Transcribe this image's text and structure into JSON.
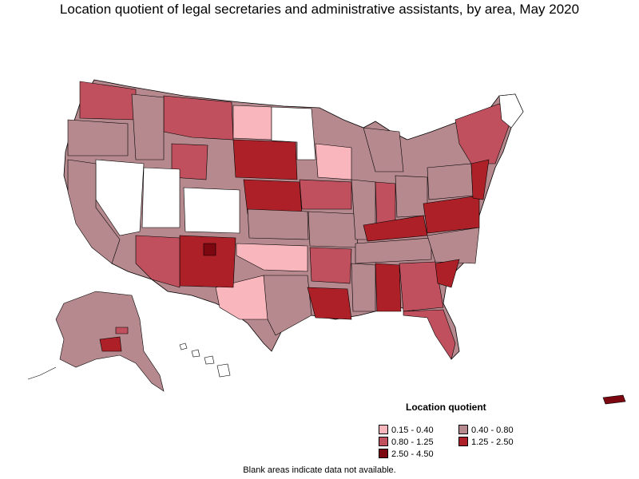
{
  "title": "Location quotient of legal secretaries and administrative assistants, by area, May 2020",
  "legend": {
    "title": "Location quotient",
    "items": [
      {
        "label": "0.15 - 0.40",
        "color": "#f9b6bd"
      },
      {
        "label": "0.40 - 0.80",
        "color": "#b5898e"
      },
      {
        "label": "0.80 - 1.25",
        "color": "#c0505d"
      },
      {
        "label": "1.25 - 2.50",
        "color": "#ad2027"
      },
      {
        "label": "2.50 - 4.50",
        "color": "#7d0711"
      }
    ]
  },
  "footnote": "Blank areas indicate data not available.",
  "colors": {
    "blank": "#ffffff",
    "border": "#000000"
  }
}
